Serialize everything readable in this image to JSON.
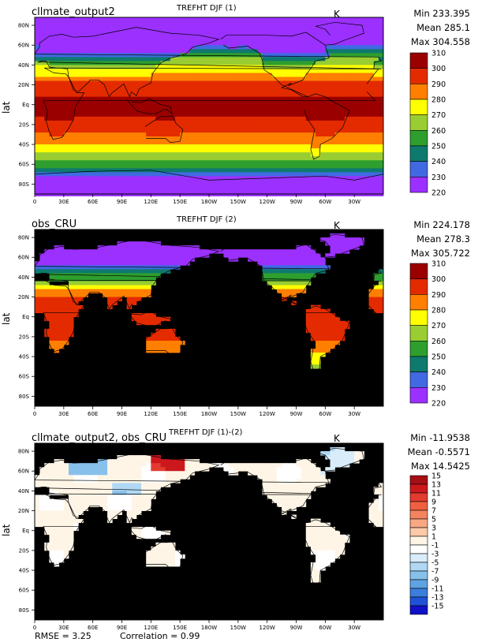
{
  "chart_data": [
    {
      "type": "heatmap",
      "case_name": "cllmate_output2",
      "title": "TREFHT DJF (1)",
      "unit": "K",
      "stats": {
        "min": "Min 233.395",
        "mean": "Mean 285.1",
        "max": "Max 304.558"
      },
      "ylabel": "lat",
      "x_ticks": [
        "0",
        "30E",
        "60E",
        "90E",
        "120E",
        "150E",
        "180W",
        "150W",
        "120W",
        "90W",
        "60W",
        "30W"
      ],
      "y_ticks": [
        "80N",
        "60N",
        "40N",
        "20N",
        "Eq",
        "20S",
        "40S",
        "60S",
        "80S"
      ],
      "colorbar": {
        "levels": [
          "310",
          "300",
          "290",
          "280",
          "270",
          "260",
          "250",
          "240",
          "230",
          "220"
        ],
        "colors": [
          "#9b0000",
          "#e42b00",
          "#ff7f00",
          "#ffff00",
          "#9acd32",
          "#2e9e2e",
          "#0e7a6e",
          "#4169e1",
          "#9b30ff"
        ]
      },
      "field": "model",
      "background": "#3c5fc8"
    },
    {
      "type": "heatmap",
      "case_name": "obs_CRU",
      "title": "TREFHT DJF (2)",
      "unit": "K",
      "stats": {
        "min": "Min 224.178",
        "mean": "Mean 278.3",
        "max": "Max 305.722"
      },
      "ylabel": "lat",
      "x_ticks": [
        "0",
        "30E",
        "60E",
        "90E",
        "120E",
        "150E",
        "180W",
        "150W",
        "120W",
        "90W",
        "60W",
        "30W"
      ],
      "y_ticks": [
        "80N",
        "60N",
        "40N",
        "20N",
        "Eq",
        "20S",
        "40S",
        "60S",
        "80S"
      ],
      "colorbar": {
        "levels": [
          "310",
          "300",
          "290",
          "280",
          "270",
          "260",
          "250",
          "240",
          "230",
          "220"
        ],
        "colors": [
          "#9b0000",
          "#e42b00",
          "#ff7f00",
          "#ffff00",
          "#9acd32",
          "#2e9e2e",
          "#0e7a6e",
          "#4169e1",
          "#9b30ff"
        ]
      },
      "field": "obs",
      "background": "#000000"
    },
    {
      "type": "heatmap",
      "case_name": "cllmate_output2, obs_CRU",
      "title": "TREFHT DJF (1)-(2)",
      "unit": "K",
      "stats": {
        "min": "Min -11.9538",
        "mean": "Mean -0.5571",
        "max": "Max 14.5425"
      },
      "ylabel": "lat",
      "x_ticks": [
        "0",
        "30E",
        "60E",
        "90E",
        "120E",
        "150E",
        "180W",
        "150W",
        "120W",
        "90W",
        "60W",
        "30W"
      ],
      "y_ticks": [
        "80N",
        "60N",
        "40N",
        "20N",
        "Eq",
        "20S",
        "40S",
        "60S",
        "80S"
      ],
      "colorbar": {
        "levels": [
          "15",
          "13",
          "11",
          "9",
          "7",
          "5",
          "3",
          "1",
          "-1",
          "-3",
          "-5",
          "-7",
          "-9",
          "-11",
          "-13",
          "-15"
        ],
        "colors": [
          "#a50f15",
          "#cb181d",
          "#e33b2f",
          "#f06040",
          "#f4845f",
          "#f8a882",
          "#fccaa8",
          "#fff5e6",
          "#ffffff",
          "#d8ecfa",
          "#b0d8f4",
          "#88c0ec",
          "#5fa3e3",
          "#3b7fdc",
          "#1f52d6",
          "#1010c8"
        ]
      },
      "field": "diff",
      "background": "#000000"
    }
  ],
  "footer": {
    "rmse": "RMSE = 3.25",
    "correlation": "Correlation = 0.99"
  }
}
